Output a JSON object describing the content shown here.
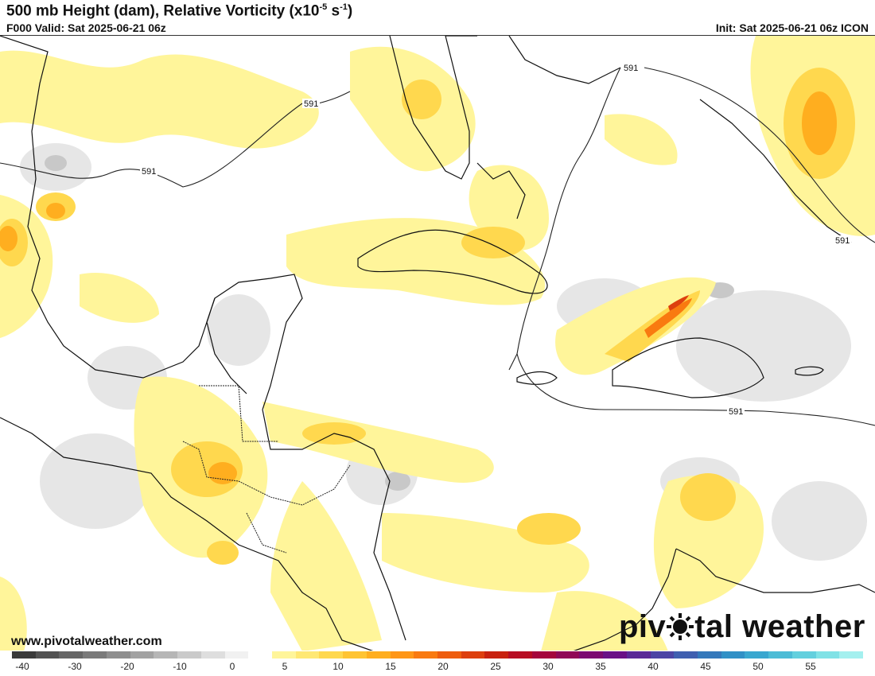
{
  "header": {
    "title_main": "500 mb Height (dam), Relative Vorticity (x10",
    "title_exp1": "-5",
    "title_mid": " s",
    "title_exp2": "-1",
    "title_end": ")",
    "valid": "F000 Valid: Sat 2025-06-21 06z",
    "init": "Init: Sat 2025-06-21 06z ICON"
  },
  "contours": {
    "label_591": "591"
  },
  "footer": {
    "website": "www.pivotalweather.com",
    "brand_left": "piv",
    "brand_right": "tal weather"
  },
  "colorbar": {
    "labels": [
      "-40",
      "-30",
      "-20",
      "-10",
      "0",
      "5",
      "10",
      "15",
      "20",
      "25",
      "30",
      "35",
      "40",
      "45",
      "50",
      "55"
    ],
    "colors": [
      "#3a3a3a",
      "#525252",
      "#666666",
      "#7a7a7a",
      "#8e8e8e",
      "#a2a2a2",
      "#b6b6b6",
      "#cacaca",
      "#dedede",
      "#f1f1f1",
      "#ffffff",
      "#fff59a",
      "#ffe873",
      "#ffd84e",
      "#ffc433",
      "#ffae1f",
      "#ff9616",
      "#f97a10",
      "#ee5c0e",
      "#dd3f0e",
      "#c8210f",
      "#b70d23",
      "#a5063c",
      "#900856",
      "#7c0a70",
      "#6a1186",
      "#5a2a96",
      "#4c45a4",
      "#3f5fb0",
      "#3478bb",
      "#3090c6",
      "#39a7cf",
      "#4cbcd6",
      "#63d0de",
      "#80e2e6",
      "#a4f0ef"
    ]
  }
}
